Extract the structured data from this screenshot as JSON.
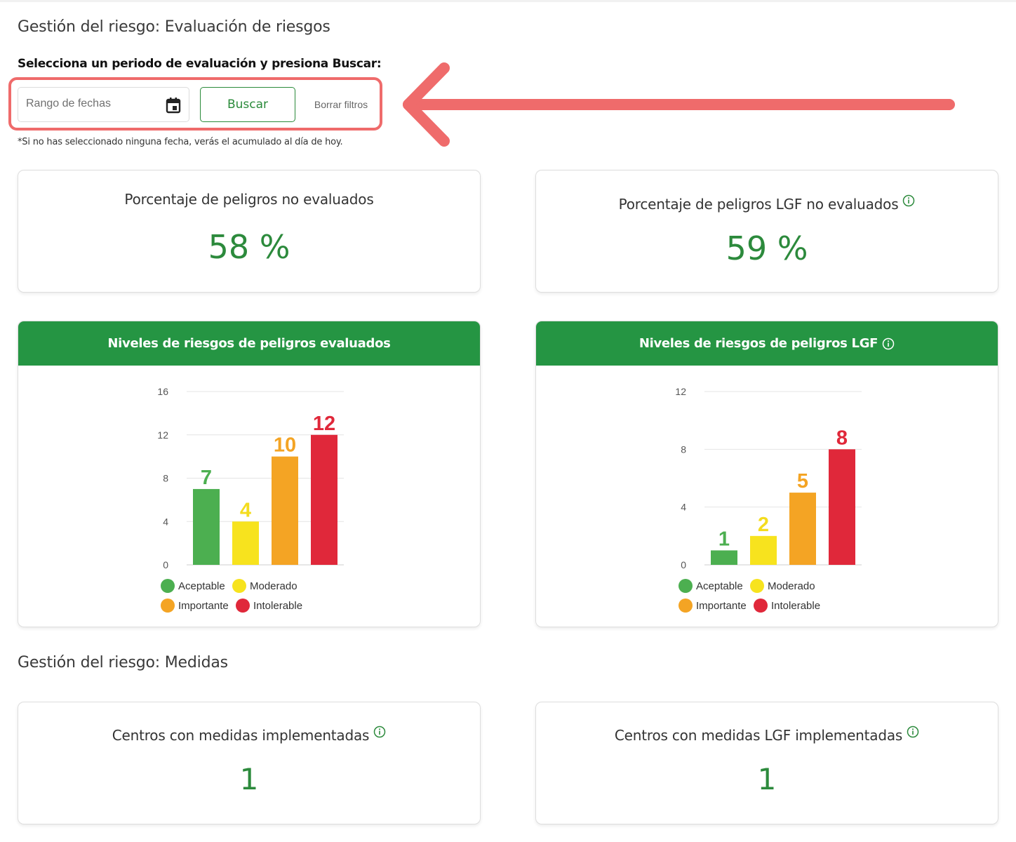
{
  "section1": {
    "title": "Gestión del riesgo: Evaluación de riesgos"
  },
  "filters": {
    "prompt": "Selecciona un periodo de evaluación y presiona Buscar:",
    "date_placeholder": "Rango de fechas",
    "search_label": "Buscar",
    "clear_label": "Borrar filtros",
    "footnote": "*Si no has seleccionado ninguna fecha, verás el acumulado al día de hoy."
  },
  "kpis": [
    {
      "label": "Porcentaje de peligros no evaluados",
      "value": "58 %",
      "info": false
    },
    {
      "label": "Porcentaje de peligros LGF no evaluados",
      "value": "59 %",
      "info": true
    }
  ],
  "section2": {
    "title": "Gestión del riesgo: Medidas"
  },
  "measures": [
    {
      "label": "Centros con medidas implementadas",
      "value": "1",
      "info": true
    },
    {
      "label": "Centros con medidas LGF implementadas",
      "value": "1",
      "info": true
    }
  ],
  "colors": {
    "accent": "#259543",
    "value_green": "#2c8a3c",
    "highlight": "#ef6b6b"
  },
  "chart_data": [
    {
      "type": "bar",
      "title": "Niveles de riesgos de peligros evaluados",
      "info": false,
      "categories": [
        "Aceptable",
        "Moderado",
        "Importante",
        "Intolerable"
      ],
      "values": [
        7,
        4,
        10,
        12
      ],
      "colors": [
        "#4caf50",
        "#f7e31e",
        "#f4a424",
        "#e0283a"
      ],
      "label_colors": [
        "#4caf50",
        "#f4dc1e",
        "#f4a424",
        "#e0283a"
      ],
      "ylim": [
        0,
        16
      ],
      "yticks": [
        0,
        4,
        8,
        12,
        16
      ],
      "grid": true,
      "legend": "bottom"
    },
    {
      "type": "bar",
      "title": "Niveles de riesgos de peligros LGF",
      "info": true,
      "categories": [
        "Aceptable",
        "Moderado",
        "Importante",
        "Intolerable"
      ],
      "values": [
        1,
        2,
        5,
        8
      ],
      "colors": [
        "#4caf50",
        "#f7e31e",
        "#f4a424",
        "#e0283a"
      ],
      "label_colors": [
        "#4caf50",
        "#f4dc1e",
        "#f4a424",
        "#e0283a"
      ],
      "ylim": [
        0,
        12
      ],
      "yticks": [
        0,
        4,
        8,
        12
      ],
      "grid": true,
      "legend": "bottom"
    }
  ]
}
